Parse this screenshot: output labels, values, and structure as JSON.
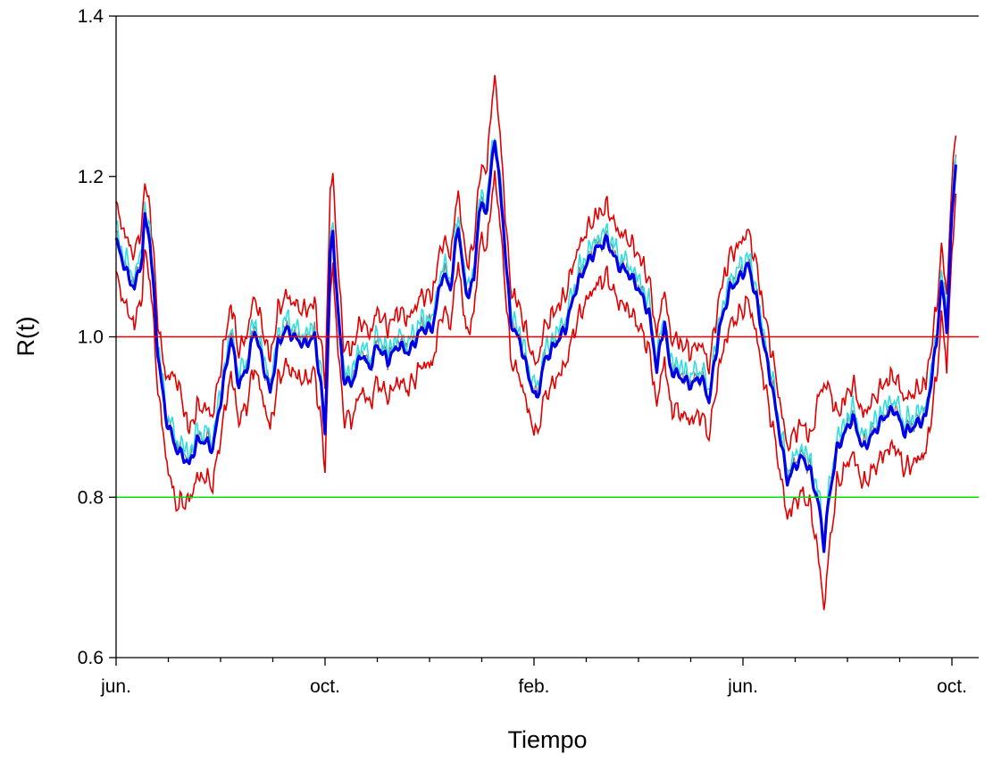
{
  "chart_data": {
    "type": "line",
    "title": "",
    "xlabel": "Tiempo",
    "ylabel": "R(t)",
    "x_range_months": [
      0,
      16.1
    ],
    "ylim": [
      0.6,
      1.4
    ],
    "yticks": [
      "0.6",
      "0.8",
      "1.0",
      "1.2",
      "1.4"
    ],
    "xticks": [
      {
        "month": 0,
        "label": "jun."
      },
      {
        "month": 4,
        "label": "oct."
      },
      {
        "month": 8,
        "label": "feb."
      },
      {
        "month": 12,
        "label": "jun."
      },
      {
        "month": 16,
        "label": "oct."
      }
    ],
    "grid": false,
    "reference_lines": [
      {
        "y": 1.0,
        "color": "#e00000"
      },
      {
        "y": 0.8,
        "color": "#00e000"
      }
    ],
    "colors": {
      "estimate": "#0000e6",
      "upper_band": "#e00000",
      "lower_band": "#e00000",
      "alt_estimate": "#33dddd",
      "alt_estimate_2": "#7a7a7a"
    },
    "keypoints": [
      [
        0.0,
        1.12
      ],
      [
        0.2,
        1.08
      ],
      [
        0.35,
        1.06
      ],
      [
        0.5,
        1.1
      ],
      [
        0.55,
        1.15
      ],
      [
        0.65,
        1.12
      ],
      [
        0.8,
        0.98
      ],
      [
        0.95,
        0.9
      ],
      [
        1.05,
        0.88
      ],
      [
        1.15,
        0.86
      ],
      [
        1.3,
        0.85
      ],
      [
        1.4,
        0.84
      ],
      [
        1.55,
        0.87
      ],
      [
        1.7,
        0.87
      ],
      [
        1.85,
        0.86
      ],
      [
        2.0,
        0.92
      ],
      [
        2.2,
        1.0
      ],
      [
        2.35,
        0.94
      ],
      [
        2.5,
        0.96
      ],
      [
        2.65,
        1.01
      ],
      [
        2.8,
        0.97
      ],
      [
        2.95,
        0.93
      ],
      [
        3.1,
        0.99
      ],
      [
        3.25,
        1.01
      ],
      [
        3.4,
        1.0
      ],
      [
        3.6,
        0.99
      ],
      [
        3.8,
        1.0
      ],
      [
        3.92,
        0.94
      ],
      [
        4.0,
        0.88
      ],
      [
        4.1,
        1.1
      ],
      [
        4.15,
        1.13
      ],
      [
        4.25,
        1.03
      ],
      [
        4.35,
        0.95
      ],
      [
        4.5,
        0.94
      ],
      [
        4.7,
        0.98
      ],
      [
        4.85,
        0.96
      ],
      [
        5.0,
        0.99
      ],
      [
        5.2,
        0.97
      ],
      [
        5.4,
        0.99
      ],
      [
        5.6,
        0.98
      ],
      [
        5.85,
        1.01
      ],
      [
        6.05,
        1.01
      ],
      [
        6.25,
        1.08
      ],
      [
        6.4,
        1.06
      ],
      [
        6.55,
        1.14
      ],
      [
        6.7,
        1.05
      ],
      [
        6.85,
        1.07
      ],
      [
        6.95,
        1.16
      ],
      [
        7.1,
        1.16
      ],
      [
        7.25,
        1.25
      ],
      [
        7.4,
        1.15
      ],
      [
        7.55,
        1.02
      ],
      [
        7.75,
        0.99
      ],
      [
        7.9,
        0.95
      ],
      [
        8.05,
        0.92
      ],
      [
        8.2,
        0.97
      ],
      [
        8.4,
        0.99
      ],
      [
        8.6,
        1.01
      ],
      [
        8.8,
        1.06
      ],
      [
        9.0,
        1.09
      ],
      [
        9.2,
        1.11
      ],
      [
        9.4,
        1.12
      ],
      [
        9.6,
        1.09
      ],
      [
        9.8,
        1.08
      ],
      [
        10.0,
        1.06
      ],
      [
        10.2,
        1.03
      ],
      [
        10.35,
        0.96
      ],
      [
        10.5,
        1.02
      ],
      [
        10.6,
        0.96
      ],
      [
        10.8,
        0.95
      ],
      [
        11.0,
        0.94
      ],
      [
        11.2,
        0.95
      ],
      [
        11.35,
        0.92
      ],
      [
        11.55,
        1.01
      ],
      [
        11.75,
        1.06
      ],
      [
        11.9,
        1.07
      ],
      [
        12.1,
        1.09
      ],
      [
        12.25,
        1.05
      ],
      [
        12.4,
        0.99
      ],
      [
        12.55,
        0.94
      ],
      [
        12.7,
        0.88
      ],
      [
        12.85,
        0.82
      ],
      [
        13.0,
        0.84
      ],
      [
        13.15,
        0.85
      ],
      [
        13.3,
        0.83
      ],
      [
        13.45,
        0.79
      ],
      [
        13.55,
        0.74
      ],
      [
        13.65,
        0.8
      ],
      [
        13.8,
        0.86
      ],
      [
        13.95,
        0.88
      ],
      [
        14.1,
        0.9
      ],
      [
        14.3,
        0.86
      ],
      [
        14.5,
        0.88
      ],
      [
        14.7,
        0.9
      ],
      [
        14.9,
        0.91
      ],
      [
        15.1,
        0.88
      ],
      [
        15.3,
        0.89
      ],
      [
        15.5,
        0.9
      ],
      [
        15.7,
        0.99
      ],
      [
        15.8,
        1.07
      ],
      [
        15.9,
        1.01
      ],
      [
        16.0,
        1.15
      ],
      [
        16.08,
        1.22
      ]
    ],
    "band_upper_offset": 0.042,
    "band_lower_offset": 0.045,
    "band_peaks": [
      {
        "month": 7.25,
        "upper": 1.33,
        "lower": 1.21
      },
      {
        "month": 4.1,
        "upper": 1.18,
        "lower": 1.09
      },
      {
        "month": 13.55,
        "upper": 0.94,
        "lower": 0.66
      },
      {
        "month": 1.15,
        "upper": 0.95,
        "lower": 0.79
      }
    ]
  }
}
